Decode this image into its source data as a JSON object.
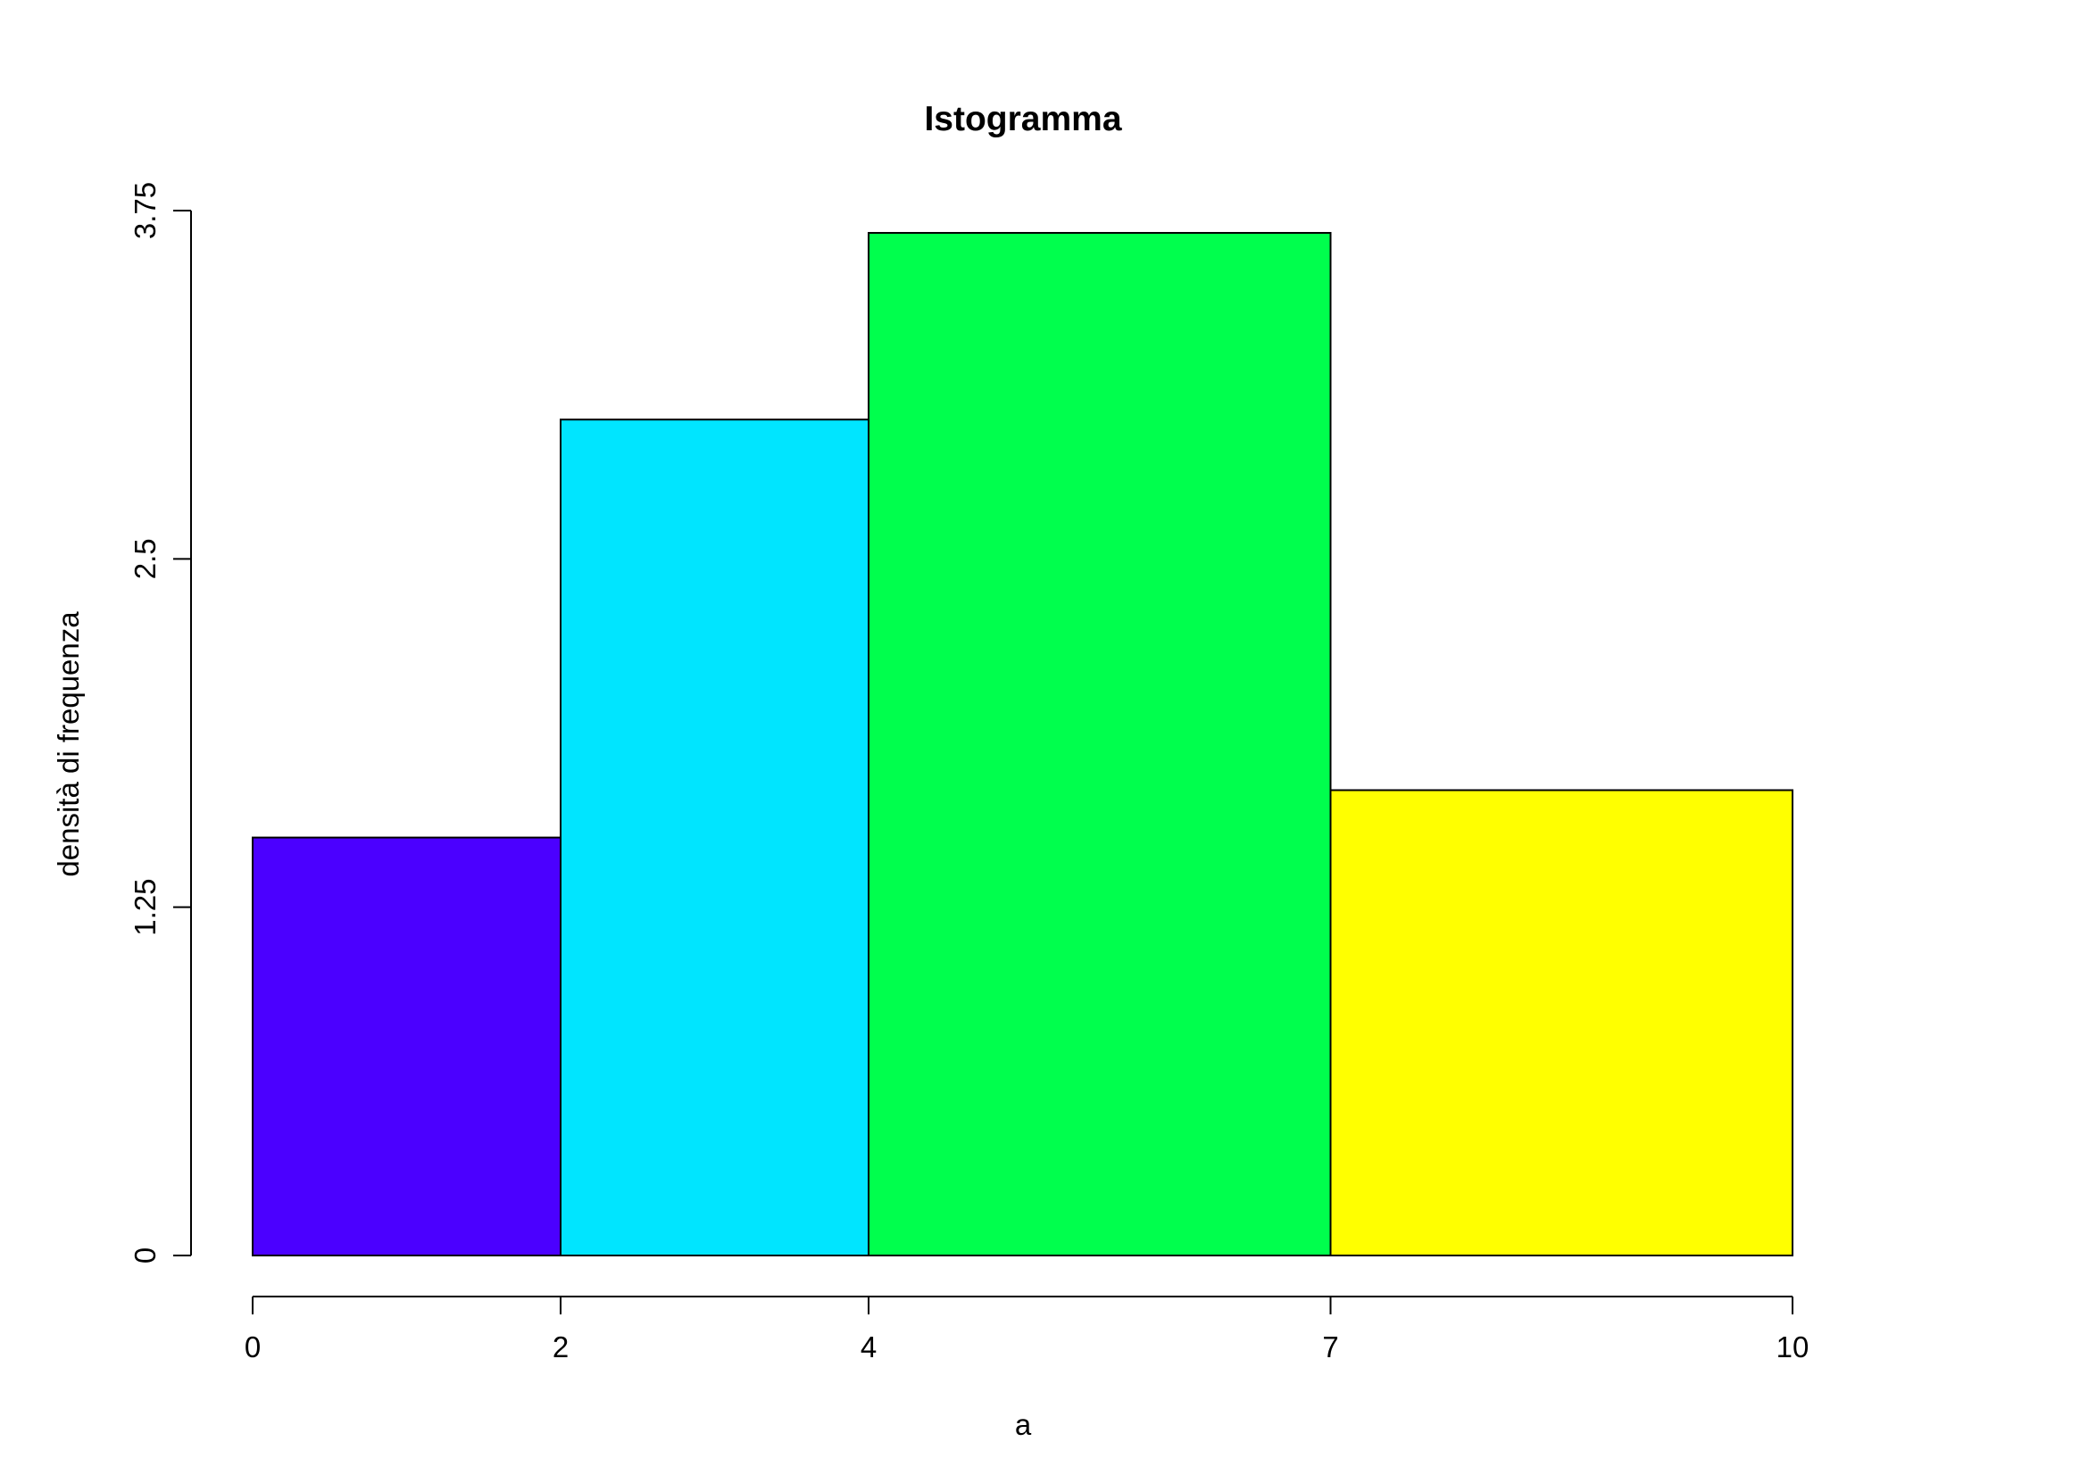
{
  "chart_data": {
    "type": "histogram",
    "title": "Istogramma",
    "xlabel": "a",
    "ylabel": "densità di frequenza",
    "xlim": [
      0,
      10
    ],
    "ylim": [
      0,
      3.75
    ],
    "x_ticks": [
      {
        "value": 0,
        "label": "0"
      },
      {
        "value": 2,
        "label": "2"
      },
      {
        "value": 4,
        "label": "4"
      },
      {
        "value": 7,
        "label": "7"
      },
      {
        "value": 10,
        "label": "10"
      }
    ],
    "y_ticks": [
      {
        "value": 0,
        "label": "0"
      },
      {
        "value": 1.25,
        "label": "1.25"
      },
      {
        "value": 2.5,
        "label": "2.5"
      },
      {
        "value": 3.75,
        "label": "3.75"
      }
    ],
    "bins": [
      {
        "from": 0,
        "to": 2,
        "value": 1.5,
        "color": "#4B00FF"
      },
      {
        "from": 2,
        "to": 4,
        "value": 3.0,
        "color": "#00E5FF"
      },
      {
        "from": 4,
        "to": 7,
        "value": 3.67,
        "color": "#00FF4D"
      },
      {
        "from": 7,
        "to": 10,
        "value": 1.67,
        "color": "#FFFF00"
      }
    ],
    "grid": false,
    "legend": "none"
  }
}
